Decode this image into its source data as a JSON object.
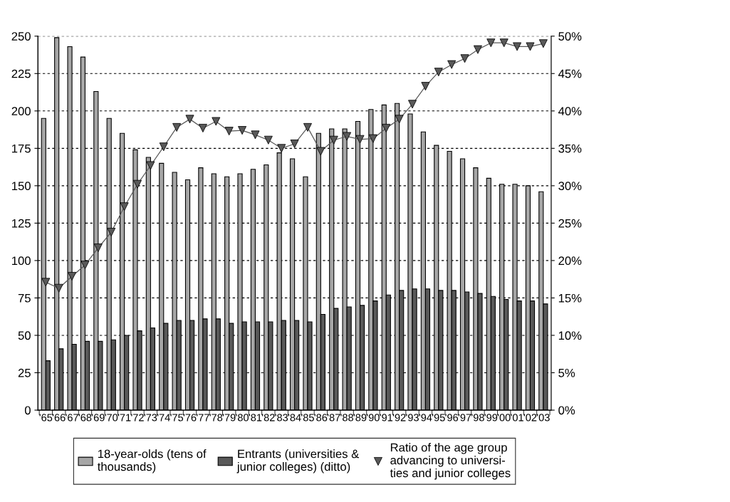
{
  "chart_data": {
    "type": "bar",
    "categories": [
      "'65",
      "'66",
      "'67",
      "'68",
      "'69",
      "'70",
      "'71",
      "'72",
      "'73",
      "'74",
      "'75",
      "'76",
      "'77",
      "'78",
      "'79",
      "'80",
      "'81",
      "'82",
      "'83",
      "'84",
      "'85",
      "'86",
      "'87",
      "'88",
      "'89",
      "'90",
      "'91",
      "'92",
      "'93",
      "'94",
      "'95",
      "'96",
      "'97",
      "'98",
      "'99",
      "'00",
      "'01",
      "'02",
      "'03"
    ],
    "series": [
      {
        "name": "18-year-olds (tens of\nthousands)",
        "color": "#a6a6a6",
        "values": [
          195,
          249,
          243,
          236,
          213,
          195,
          185,
          174,
          169,
          165,
          159,
          154,
          162,
          158,
          156,
          158,
          161,
          164,
          172,
          168,
          156,
          185,
          188,
          188,
          193,
          201,
          204,
          205,
          198,
          186,
          177,
          173,
          168,
          162,
          155,
          151,
          151,
          150,
          146
        ]
      },
      {
        "name": "Entrants (universities &\njunior colleges) (ditto)",
        "color": "#595959",
        "values": [
          33,
          41,
          44,
          46,
          46,
          47,
          50,
          53,
          55,
          58,
          60,
          60,
          61,
          61,
          58,
          59,
          59,
          59,
          60,
          60,
          59,
          64,
          68,
          69,
          70,
          73,
          77,
          80,
          81,
          81,
          80,
          80,
          79,
          78,
          76,
          74,
          73,
          73,
          71
        ]
      },
      {
        "name": "Ratio of the age group\nadvancing to universi-\nties and junior colleges",
        "type": "line",
        "axis": "y2",
        "color": "#595959",
        "marker": "triangle",
        "values": [
          17.1,
          16.3,
          17.9,
          19.4,
          21.7,
          23.8,
          27.2,
          30.2,
          32.7,
          35.2,
          37.8,
          38.9,
          37.7,
          38.6,
          37.3,
          37.4,
          36.8,
          36.1,
          35.0,
          35.6,
          37.8,
          34.6,
          36.1,
          36.6,
          36.2,
          36.3,
          37.7,
          38.9,
          40.9,
          43.3,
          45.2,
          46.2,
          47.0,
          48.2,
          49.1,
          49.1,
          48.6,
          48.6,
          49.0
        ]
      }
    ],
    "ylim": [
      0,
      250
    ],
    "yticks": [
      0,
      25,
      50,
      75,
      100,
      125,
      150,
      175,
      200,
      225,
      250
    ],
    "y2lim": [
      0,
      50
    ],
    "y2ticks": [
      {
        "value": 0,
        "label": "0%"
      },
      {
        "value": 5,
        "label": "5%"
      },
      {
        "value": 10,
        "label": "10%"
      },
      {
        "value": 15,
        "label": "15%"
      },
      {
        "value": 20,
        "label": "20%"
      },
      {
        "value": 25,
        "label": "25%"
      },
      {
        "value": 30,
        "label": "30%"
      },
      {
        "value": 35,
        "label": "35%"
      },
      {
        "value": 40,
        "label": "40%"
      },
      {
        "value": 45,
        "label": "45%"
      },
      {
        "value": 50,
        "label": "50%"
      }
    ],
    "grid": "y",
    "legend": "bottom"
  }
}
